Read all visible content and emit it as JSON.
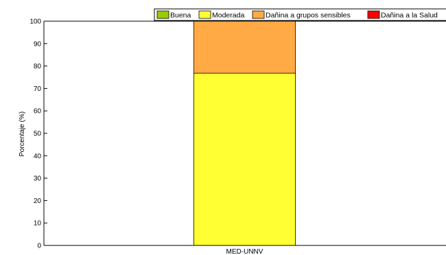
{
  "chart_data": {
    "type": "bar",
    "stacked": true,
    "categories": [
      "MED-UNNV"
    ],
    "ylabel": "Porcentaje (%)",
    "ylim": [
      0,
      100
    ],
    "yticks": [
      0,
      10,
      20,
      30,
      40,
      50,
      60,
      70,
      80,
      90,
      100
    ],
    "grid": false,
    "legend_position": "top-right",
    "series": [
      {
        "name": "Buena",
        "color": "#99cc00",
        "values": [
          0
        ]
      },
      {
        "name": "Moderada",
        "color": "#ffff33",
        "values": [
          76.8
        ]
      },
      {
        "name": "Dañina a grupos sensibles",
        "color": "#ffaa44",
        "values": [
          23.2
        ]
      },
      {
        "name": "Dañina a la Salud",
        "color": "#ff0000",
        "values": [
          0
        ]
      }
    ]
  }
}
